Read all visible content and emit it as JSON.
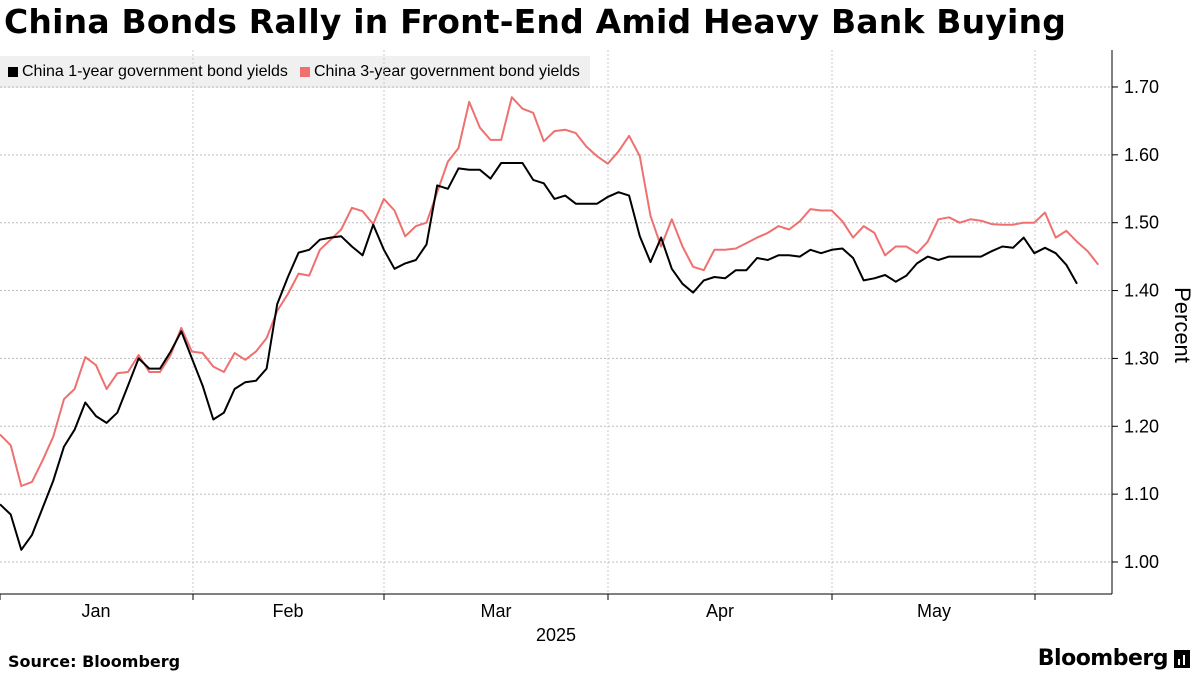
{
  "chart_data": {
    "type": "line",
    "title": "China Bonds Rally in Front-End Amid Heavy Bank Buying",
    "ylabel": "Percent",
    "ylim": [
      0.95,
      1.76
    ],
    "yticks": [
      "1.00",
      "1.10",
      "1.20",
      "1.30",
      "1.40",
      "1.50",
      "1.60",
      "1.70"
    ],
    "ytick_values": [
      1.0,
      1.1,
      1.2,
      1.3,
      1.4,
      1.5,
      1.6,
      1.7
    ],
    "grid": true,
    "legend_position": "top-left",
    "x_labels": [
      "Jan",
      "Feb",
      "Mar",
      "Apr",
      "May"
    ],
    "x_year_label": "2025",
    "series": [
      {
        "name": "China 1-year government bond yields",
        "color": "#000000",
        "values": [
          1.085,
          1.07,
          1.018,
          1.04,
          1.08,
          1.12,
          1.17,
          1.195,
          1.235,
          1.215,
          1.205,
          1.22,
          1.26,
          1.3,
          1.285,
          1.285,
          1.31,
          1.34,
          1.3,
          1.26,
          1.21,
          1.22,
          1.255,
          1.265,
          1.267,
          1.285,
          1.38,
          1.42,
          1.456,
          1.46,
          1.475,
          1.478,
          1.48,
          1.465,
          1.452,
          1.497,
          1.46,
          1.432,
          1.44,
          1.445,
          1.468,
          1.555,
          1.55,
          1.58,
          1.578,
          1.578,
          1.565,
          1.588,
          1.588,
          1.588,
          1.563,
          1.558,
          1.535,
          1.54,
          1.528,
          1.528,
          1.528,
          1.538,
          1.545,
          1.54,
          1.48,
          1.442,
          1.478,
          1.432,
          1.41,
          1.397,
          1.415,
          1.42,
          1.418,
          1.43,
          1.43,
          1.448,
          1.445,
          1.452,
          1.452,
          1.45,
          1.46,
          1.455,
          1.46,
          1.462,
          1.448,
          1.415,
          1.418,
          1.423,
          1.413,
          1.422,
          1.44,
          1.45,
          1.445,
          1.45,
          1.45,
          1.45,
          1.45,
          1.458,
          1.465,
          1.463,
          1.478,
          1.455,
          1.463,
          1.455,
          1.438,
          1.41
        ]
      },
      {
        "name": "China 3-year government bond yields",
        "color": "#f07070",
        "values": [
          1.188,
          1.172,
          1.112,
          1.118,
          1.15,
          1.185,
          1.24,
          1.255,
          1.302,
          1.29,
          1.255,
          1.278,
          1.28,
          1.305,
          1.28,
          1.28,
          1.305,
          1.345,
          1.31,
          1.308,
          1.288,
          1.28,
          1.308,
          1.298,
          1.31,
          1.33,
          1.37,
          1.395,
          1.425,
          1.422,
          1.46,
          1.475,
          1.49,
          1.522,
          1.517,
          1.498,
          1.535,
          1.518,
          1.48,
          1.495,
          1.5,
          1.545,
          1.59,
          1.61,
          1.678,
          1.64,
          1.622,
          1.622,
          1.685,
          1.668,
          1.662,
          1.62,
          1.635,
          1.637,
          1.632,
          1.612,
          1.598,
          1.587,
          1.605,
          1.628,
          1.598,
          1.51,
          1.465,
          1.505,
          1.465,
          1.435,
          1.43,
          1.46,
          1.46,
          1.462,
          1.47,
          1.478,
          1.485,
          1.495,
          1.49,
          1.502,
          1.52,
          1.518,
          1.518,
          1.502,
          1.478,
          1.495,
          1.485,
          1.452,
          1.465,
          1.465,
          1.455,
          1.472,
          1.505,
          1.508,
          1.5,
          1.505,
          1.503,
          1.498,
          1.497,
          1.497,
          1.5,
          1.5,
          1.515,
          1.478,
          1.488,
          1.472,
          1.458,
          1.438
        ]
      }
    ]
  },
  "footer": {
    "source": "Source: Bloomberg",
    "brand": "Bloomberg"
  }
}
